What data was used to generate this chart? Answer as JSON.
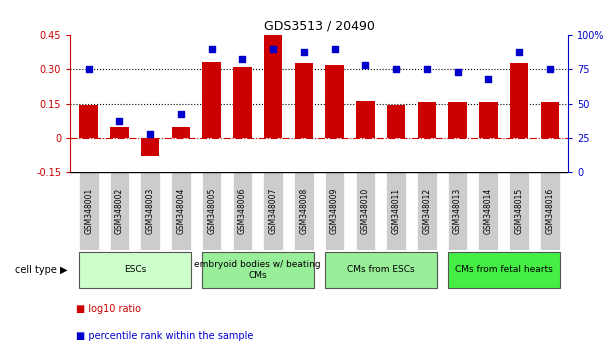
{
  "title": "GDS3513 / 20490",
  "samples": [
    "GSM348001",
    "GSM348002",
    "GSM348003",
    "GSM348004",
    "GSM348005",
    "GSM348006",
    "GSM348007",
    "GSM348008",
    "GSM348009",
    "GSM348010",
    "GSM348011",
    "GSM348012",
    "GSM348013",
    "GSM348014",
    "GSM348015",
    "GSM348016"
  ],
  "log10_ratio": [
    0.145,
    0.045,
    -0.08,
    0.045,
    0.335,
    0.31,
    0.45,
    0.33,
    0.32,
    0.16,
    0.145,
    0.155,
    0.155,
    0.155,
    0.33,
    0.155
  ],
  "percentile_rank": [
    75,
    37,
    28,
    42,
    90,
    83,
    90,
    88,
    90,
    78,
    75,
    75,
    73,
    68,
    88,
    75
  ],
  "bar_color": "#cc0000",
  "dot_color": "#0000cc",
  "ylim_left": [
    -0.15,
    0.45
  ],
  "ylim_right": [
    0,
    100
  ],
  "yticks_left": [
    -0.15,
    0.0,
    0.15,
    0.3,
    0.45
  ],
  "yticks_right": [
    0,
    25,
    50,
    75,
    100
  ],
  "ytick_labels_left": [
    "-0.15",
    "0",
    "0.15",
    "0.30",
    "0.45"
  ],
  "ytick_labels_right": [
    "0",
    "25",
    "50",
    "75",
    "100%"
  ],
  "hlines": [
    0.15,
    0.3
  ],
  "cell_type_groups": [
    {
      "label": "ESCs",
      "start": 0,
      "end": 3,
      "color": "#ccffcc"
    },
    {
      "label": "embryoid bodies w/ beating\nCMs",
      "start": 4,
      "end": 7,
      "color": "#99ee99"
    },
    {
      "label": "CMs from ESCs",
      "start": 8,
      "end": 11,
      "color": "#99ee99"
    },
    {
      "label": "CMs from fetal hearts",
      "start": 12,
      "end": 15,
      "color": "#44ee44"
    }
  ],
  "cell_type_label": "cell type",
  "sample_label_bg": "#cccccc",
  "sample_area_bg": "#dddddd",
  "legend_items": [
    {
      "label": "log10 ratio",
      "color": "#cc0000"
    },
    {
      "label": "percentile rank within the sample",
      "color": "#0000cc"
    }
  ],
  "background_color": "#ffffff"
}
